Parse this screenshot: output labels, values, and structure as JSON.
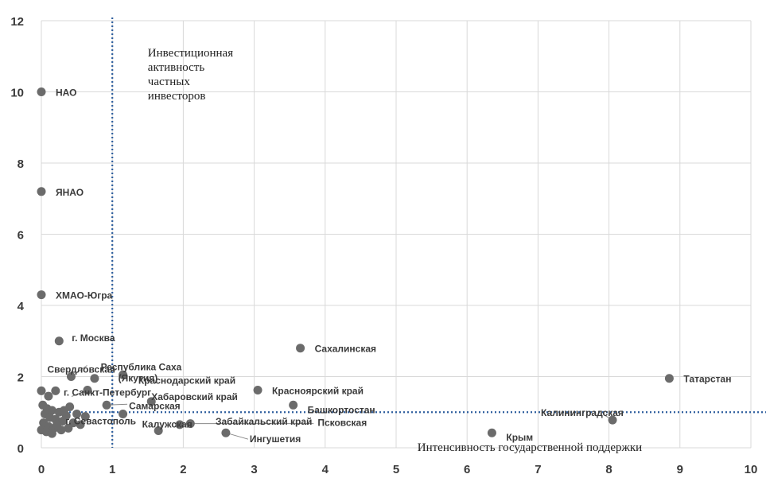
{
  "chart_data": {
    "type": "scatter",
    "title": "",
    "xlabel": "Интенсивность государственной поддержки",
    "ylabel": "",
    "xlim": [
      0,
      10
    ],
    "ylim": [
      0,
      12
    ],
    "xticks": [
      "0",
      "1",
      "2",
      "3",
      "4",
      "5",
      "6",
      "7",
      "8",
      "9",
      "10"
    ],
    "yticks": [
      "0",
      "2",
      "4",
      "6",
      "8",
      "10",
      "12"
    ],
    "grid": true,
    "marker_color": "#6b6b6b",
    "reference_line_color": "#2e5f9e",
    "reference_lines": {
      "x": 1,
      "y": 1
    },
    "quadrant_label": "Инвестиционная активность частных инвесторов",
    "points": [
      {
        "label": "НАО",
        "x": 0.0,
        "y": 10.0
      },
      {
        "label": "ЯНАО",
        "x": 0.0,
        "y": 7.2
      },
      {
        "label": "ХМАО-Югра",
        "x": 0.0,
        "y": 4.3
      },
      {
        "label": "г. Москва",
        "x": 0.25,
        "y": 3.0
      },
      {
        "label": "Сахалинская",
        "x": 3.65,
        "y": 2.8
      },
      {
        "label": "Свердловская",
        "x": 0.42,
        "y": 2.0
      },
      {
        "label": "Республика Саха (Якутия)",
        "x": 1.15,
        "y": 2.05
      },
      {
        "label": "Краснодарский край",
        "x": 0.75,
        "y": 1.95
      },
      {
        "label": "Татарстан",
        "x": 8.85,
        "y": 1.95
      },
      {
        "label": "г. Санкт-Петербург",
        "x": 0.65,
        "y": 1.62
      },
      {
        "label": "Красноярский край",
        "x": 3.05,
        "y": 1.62
      },
      {
        "label": "Хабаровский край",
        "x": 1.55,
        "y": 1.3
      },
      {
        "label": "Самарская",
        "x": 0.92,
        "y": 1.2
      },
      {
        "label": "Башкортостан",
        "x": 3.55,
        "y": 1.2
      },
      {
        "label": "Калужская",
        "x": 1.15,
        "y": 0.95
      },
      {
        "label": "Забайкальский край",
        "x": 1.95,
        "y": 0.65
      },
      {
        "label": "г. Севастополь",
        "x": 0.62,
        "y": 0.88
      },
      {
        "label": "Калининградская",
        "x": 8.05,
        "y": 0.78
      },
      {
        "label": "Псковская",
        "x": 2.1,
        "y": 0.68
      },
      {
        "label": "Ингушетия",
        "x": 2.6,
        "y": 0.42
      },
      {
        "label": "Крым",
        "x": 6.35,
        "y": 0.42
      },
      {
        "label": "",
        "x": 1.65,
        "y": 0.48
      },
      {
        "label": "",
        "x": 0.0,
        "y": 1.6
      },
      {
        "label": "",
        "x": 0.2,
        "y": 1.6
      },
      {
        "label": "",
        "x": 0.1,
        "y": 1.45
      },
      {
        "label": "",
        "x": 0.02,
        "y": 1.2
      },
      {
        "label": "",
        "x": 0.08,
        "y": 1.1
      },
      {
        "label": "",
        "x": 0.15,
        "y": 1.05
      },
      {
        "label": "",
        "x": 0.25,
        "y": 1.0
      },
      {
        "label": "",
        "x": 0.4,
        "y": 1.15
      },
      {
        "label": "",
        "x": 0.05,
        "y": 0.95
      },
      {
        "label": "",
        "x": 0.12,
        "y": 0.85
      },
      {
        "label": "",
        "x": 0.2,
        "y": 0.8
      },
      {
        "label": "",
        "x": 0.3,
        "y": 0.75
      },
      {
        "label": "",
        "x": 0.35,
        "y": 0.9
      },
      {
        "label": "",
        "x": 0.45,
        "y": 0.7
      },
      {
        "label": "",
        "x": 0.03,
        "y": 0.7
      },
      {
        "label": "",
        "x": 0.1,
        "y": 0.6
      },
      {
        "label": "",
        "x": 0.18,
        "y": 0.55
      },
      {
        "label": "",
        "x": 0.28,
        "y": 0.5
      },
      {
        "label": "",
        "x": 0.38,
        "y": 0.55
      },
      {
        "label": "",
        "x": 0.0,
        "y": 0.5
      },
      {
        "label": "",
        "x": 0.07,
        "y": 0.45
      },
      {
        "label": "",
        "x": 0.15,
        "y": 0.4
      },
      {
        "label": "",
        "x": 0.5,
        "y": 0.95
      },
      {
        "label": "",
        "x": 0.55,
        "y": 0.65
      },
      {
        "label": "",
        "x": 0.22,
        "y": 0.65
      },
      {
        "label": "",
        "x": 0.32,
        "y": 1.05
      }
    ]
  }
}
